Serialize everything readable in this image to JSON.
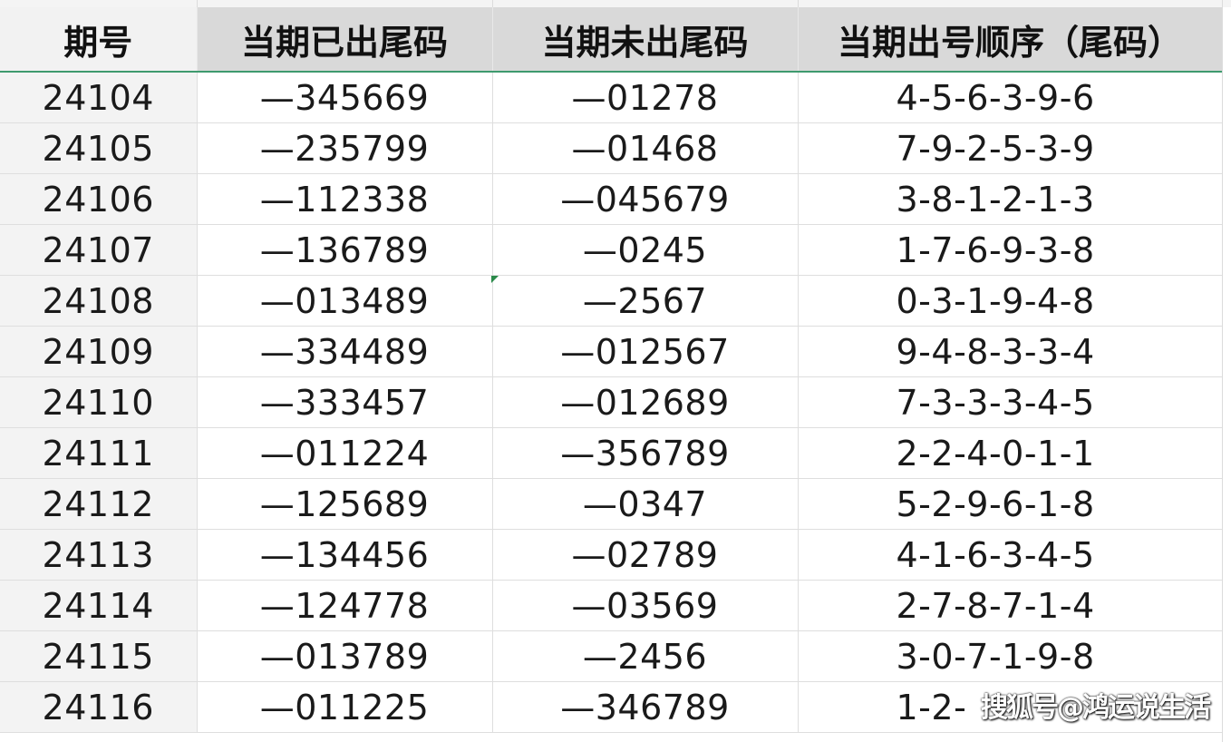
{
  "headers": [
    "期号",
    "当期已出尾码",
    "当期未出尾码",
    "当期出号顺序（尾码）"
  ],
  "rows": [
    [
      "24104",
      "—345669",
      "—01278",
      "4-5-6-3-9-6"
    ],
    [
      "24105",
      "—235799",
      "—01468",
      "7-9-2-5-3-9"
    ],
    [
      "24106",
      "—112338",
      "—045679",
      "3-8-1-2-1-3"
    ],
    [
      "24107",
      "—136789",
      "—0245",
      "1-7-6-9-3-8"
    ],
    [
      "24108",
      "—013489",
      "—2567",
      "0-3-1-9-4-8"
    ],
    [
      "24109",
      "—334489",
      "—012567",
      "9-4-8-3-3-4"
    ],
    [
      "24110",
      "—333457",
      "—012689",
      "7-3-3-3-4-5"
    ],
    [
      "24111",
      "—011224",
      "—356789",
      "2-2-4-0-1-1"
    ],
    [
      "24112",
      "—125689",
      "—0347",
      "5-2-9-6-1-8"
    ],
    [
      "24113",
      "—134456",
      "—02789",
      "4-1-6-3-4-5"
    ],
    [
      "24114",
      "—124778",
      "—03569",
      "2-7-8-7-1-4"
    ],
    [
      "24115",
      "—013789",
      "—2456",
      "3-0-7-1-9-8"
    ],
    [
      "24116",
      "—011225",
      "—346789",
      "1-2-"
    ]
  ],
  "watermark": "搜狐号@鸿运说生活",
  "accent_color": "#3e9a6e"
}
